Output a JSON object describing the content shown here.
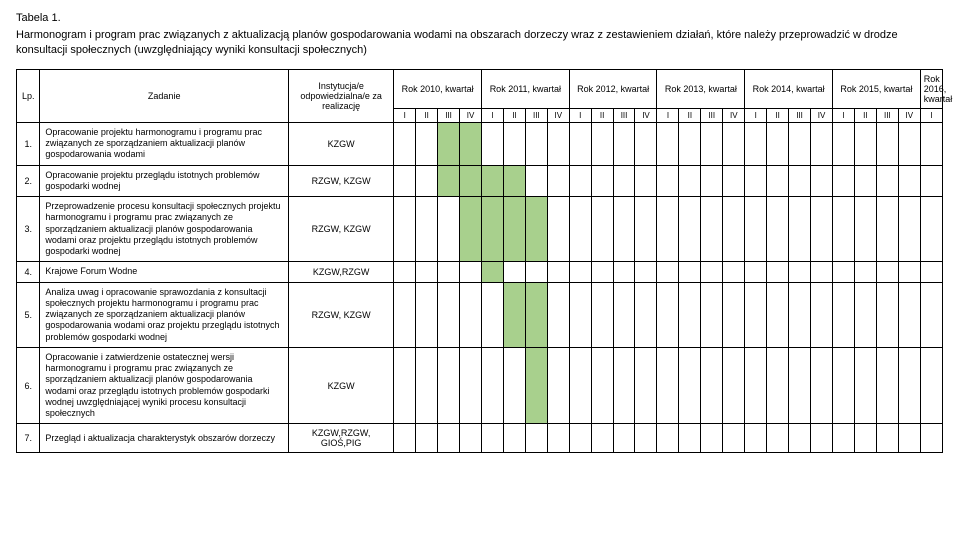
{
  "header": {
    "table_label": "Tabela 1.",
    "title": "Harmonogram i program prac związanych z aktualizacją planów gospodarowania wodami na obszarach dorzeczy wraz z zestawieniem działań, które należy przeprowadzić w drodze konsultacji społecznych (uwzględniający wyniki konsultacji społecznych)"
  },
  "columns": {
    "lp": "Lp.",
    "task": "Zadanie",
    "institution": "Instytucja/e odpowiedzialna/e za realizację",
    "year_groups": [
      {
        "label": "Rok 2010, kwartał",
        "quarters": 4,
        "sub": [
          "I",
          "II",
          "III",
          "IV"
        ]
      },
      {
        "label": "Rok 2011, kwartał",
        "quarters": 4,
        "sub": [
          "I",
          "II",
          "III",
          "IV"
        ]
      },
      {
        "label": "Rok 2012, kwartał",
        "quarters": 4,
        "sub": [
          "I",
          "II",
          "III",
          "IV"
        ]
      },
      {
        "label": "Rok 2013, kwartał",
        "quarters": 4,
        "sub": [
          "I",
          "II",
          "III",
          "IV"
        ]
      },
      {
        "label": "Rok 2014, kwartał",
        "quarters": 4,
        "sub": [
          "I",
          "II",
          "III",
          "IV"
        ]
      },
      {
        "label": "Rok 2015, kwartał",
        "quarters": 4,
        "sub": [
          "I",
          "II",
          "III",
          "IV"
        ]
      },
      {
        "label": "Rok 2016, kwartał",
        "quarters": 1,
        "sub": [
          "I"
        ]
      }
    ]
  },
  "style": {
    "fill_color": "#a8d08d",
    "border_color": "#000000",
    "background": "#ffffff",
    "font_size_body": 9,
    "font_size_title": 11,
    "total_quarters": 25
  },
  "rows": [
    {
      "lp": "1.",
      "task": "Opracowanie projektu harmonogramu i programu prac związanych ze sporządzaniem aktualizacji planów gospodarowania wodami",
      "institution": "KZGW",
      "filled": [
        2,
        3
      ]
    },
    {
      "lp": "2.",
      "task": "Opracowanie projektu przeglądu istotnych problemów gospodarki wodnej",
      "institution": "RZGW, KZGW",
      "filled": [
        2,
        3,
        4,
        5
      ]
    },
    {
      "lp": "3.",
      "task": "Przeprowadzenie procesu konsultacji społecznych projektu harmonogramu i programu prac związanych ze sporządzaniem aktualizacji planów gospodarowania wodami oraz projektu przeglądu istotnych problemów gospodarki wodnej",
      "institution": "RZGW, KZGW",
      "filled": [
        3,
        4,
        5,
        6
      ]
    },
    {
      "lp": "4.",
      "task": "Krajowe Forum Wodne",
      "institution": "KZGW,RZGW",
      "filled": [
        4
      ]
    },
    {
      "lp": "5.",
      "task": "Analiza uwag i opracowanie sprawozdania z konsultacji społecznych projektu harmonogramu i programu prac związanych ze sporządzaniem aktualizacji planów gospodarowania wodami oraz projektu przeglądu istotnych problemów gospodarki wodnej",
      "institution": "RZGW, KZGW",
      "filled": [
        5,
        6
      ]
    },
    {
      "lp": "6.",
      "task": "Opracowanie i zatwierdzenie ostatecznej wersji harmonogramu i programu prac związanych ze sporządzaniem aktualizacji planów gospodarowania wodami oraz przeglądu istotnych problemów gospodarki wodnej uwzględniającej wyniki procesu konsultacji społecznych",
      "institution": "KZGW",
      "filled": [
        6
      ]
    },
    {
      "lp": "7.",
      "task": "Przegląd i aktualizacja charakterystyk obszarów dorzeczy",
      "institution": "KZGW,RZGW, GIOŚ,PIG",
      "filled": []
    }
  ]
}
